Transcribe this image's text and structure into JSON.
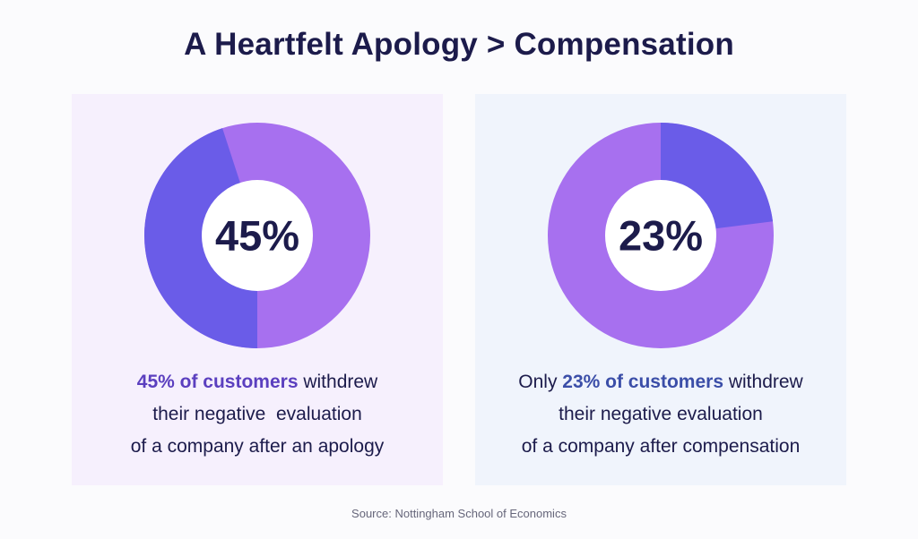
{
  "title": "A Heartfelt Apology > Compensation",
  "colors": {
    "segment_highlight": "#6a5ce8",
    "segment_rest": "#a770ef",
    "center": "#ffffff",
    "left_panel_bg": "#f6f0fd",
    "right_panel_bg": "#f0f4fc",
    "text_dark": "#1c1b4b",
    "highlight_left_text": "#5b3fbf",
    "highlight_right_text": "#3b4ea8"
  },
  "chart_data": [
    {
      "type": "pie",
      "style": "donut",
      "center_label": "45%",
      "slices": [
        {
          "value": 45,
          "color": "#6a5ce8"
        },
        {
          "value": 55,
          "color": "#a770ef"
        }
      ],
      "highlight_direction": "counterclockwise"
    },
    {
      "type": "pie",
      "style": "donut",
      "center_label": "23%",
      "slices": [
        {
          "value": 23,
          "color": "#6a5ce8"
        },
        {
          "value": 77,
          "color": "#a770ef"
        }
      ],
      "highlight_direction": "clockwise"
    }
  ],
  "captions": {
    "left": {
      "line1_highlight": "45% of customers",
      "line1_rest": " withdrew",
      "line2": "their negative  evaluation",
      "line3": "of a company after an apology"
    },
    "right": {
      "line1_prefix": "Only ",
      "line1_highlight": "23% of customers",
      "line1_rest": " withdrew",
      "line2": "their negative evaluation",
      "line3": "of a company after compensation"
    }
  },
  "source": "Source: Nottingham School of Economics"
}
